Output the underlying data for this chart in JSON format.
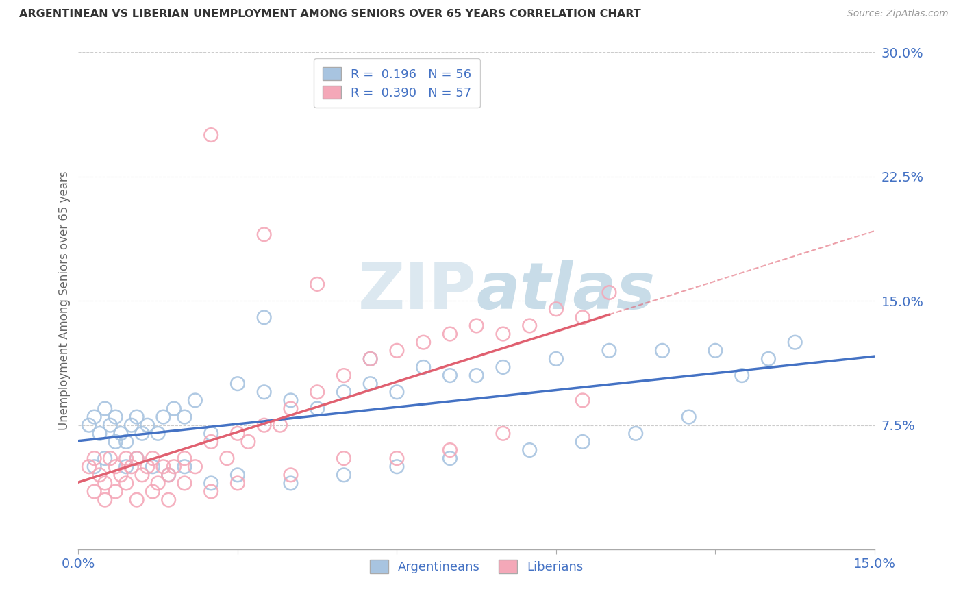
{
  "title": "ARGENTINEAN VS LIBERIAN UNEMPLOYMENT AMONG SENIORS OVER 65 YEARS CORRELATION CHART",
  "source": "Source: ZipAtlas.com",
  "ylabel": "Unemployment Among Seniors over 65 years",
  "xlim": [
    0.0,
    15.0
  ],
  "ylim": [
    0.0,
    30.0
  ],
  "yticks": [
    0.0,
    7.5,
    15.0,
    22.5,
    30.0
  ],
  "ytick_labels": [
    "",
    "7.5%",
    "15.0%",
    "22.5%",
    "30.0%"
  ],
  "legend_r_argentinean": "R =  0.196   N = 56",
  "legend_r_liberian": "R =  0.390   N = 57",
  "argentinean_color": "#a8c4e0",
  "liberian_color": "#f4a8b8",
  "argentinean_line_color": "#4472c4",
  "liberian_line_color": "#e06070",
  "background_color": "#ffffff",
  "watermark_color": "#dce8f0",
  "argentinean_x": [
    0.2,
    0.3,
    0.4,
    0.5,
    0.6,
    0.7,
    0.8,
    0.9,
    1.0,
    1.1,
    1.2,
    1.3,
    1.5,
    1.6,
    1.8,
    2.0,
    2.2,
    2.5,
    3.0,
    3.5,
    4.0,
    4.5,
    5.0,
    5.5,
    6.0,
    7.0,
    8.0,
    9.0,
    10.0,
    11.0,
    12.0,
    13.0,
    13.5,
    0.3,
    0.5,
    0.7,
    0.9,
    1.1,
    1.4,
    1.7,
    2.0,
    2.5,
    3.0,
    4.0,
    5.0,
    6.0,
    7.0,
    8.5,
    9.5,
    10.5,
    11.5,
    3.5,
    5.5,
    6.5,
    7.5,
    12.5
  ],
  "argentinean_y": [
    7.5,
    8.0,
    7.0,
    8.5,
    7.5,
    8.0,
    7.0,
    6.5,
    7.5,
    8.0,
    7.0,
    7.5,
    7.0,
    8.0,
    8.5,
    8.0,
    9.0,
    7.0,
    10.0,
    9.5,
    9.0,
    8.5,
    9.5,
    10.0,
    9.5,
    10.5,
    11.0,
    11.5,
    12.0,
    12.0,
    12.0,
    11.5,
    12.5,
    5.0,
    5.5,
    6.5,
    5.0,
    5.5,
    5.0,
    4.5,
    5.0,
    4.0,
    4.5,
    4.0,
    4.5,
    5.0,
    5.5,
    6.0,
    6.5,
    7.0,
    8.0,
    14.0,
    11.5,
    11.0,
    10.5,
    10.5
  ],
  "liberian_x": [
    0.2,
    0.3,
    0.4,
    0.5,
    0.6,
    0.7,
    0.8,
    0.9,
    1.0,
    1.1,
    1.2,
    1.3,
    1.4,
    1.5,
    1.6,
    1.7,
    1.8,
    2.0,
    2.2,
    2.5,
    2.8,
    3.0,
    3.2,
    3.5,
    3.8,
    4.0,
    4.5,
    5.0,
    5.5,
    6.0,
    6.5,
    7.0,
    7.5,
    8.0,
    8.5,
    9.0,
    9.5,
    10.0,
    0.3,
    0.5,
    0.7,
    0.9,
    1.1,
    1.4,
    1.7,
    2.0,
    2.5,
    3.0,
    4.0,
    5.0,
    6.0,
    7.0,
    8.0,
    9.5,
    2.5,
    3.5,
    4.5
  ],
  "liberian_y": [
    5.0,
    5.5,
    4.5,
    4.0,
    5.5,
    5.0,
    4.5,
    5.5,
    5.0,
    5.5,
    4.5,
    5.0,
    5.5,
    4.0,
    5.0,
    4.5,
    5.0,
    5.5,
    5.0,
    6.5,
    5.5,
    7.0,
    6.5,
    7.5,
    7.5,
    8.5,
    9.5,
    10.5,
    11.5,
    12.0,
    12.5,
    13.0,
    13.5,
    13.0,
    13.5,
    14.5,
    14.0,
    15.5,
    3.5,
    3.0,
    3.5,
    4.0,
    3.0,
    3.5,
    3.0,
    4.0,
    3.5,
    4.0,
    4.5,
    5.5,
    5.5,
    6.0,
    7.0,
    9.0,
    25.0,
    19.0,
    16.0
  ]
}
